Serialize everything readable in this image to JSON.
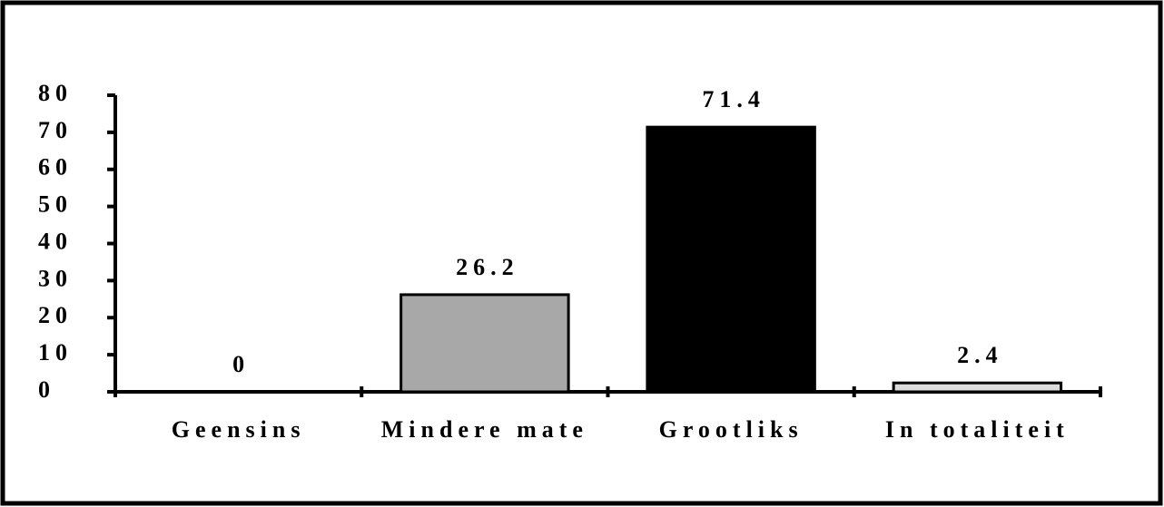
{
  "chart_data": {
    "type": "bar",
    "categories": [
      "Geensins",
      "Mindere mate",
      "Grootliks",
      "In totaliteit"
    ],
    "values": [
      0,
      26.2,
      71.4,
      2.4
    ],
    "colors": [
      "#ffffff",
      "#a8a8a8",
      "#000000",
      "#dcdcdc"
    ],
    "ylim": [
      0,
      80
    ],
    "yticks": [
      0,
      10,
      20,
      30,
      40,
      50,
      60,
      70,
      80
    ],
    "grid": false
  }
}
